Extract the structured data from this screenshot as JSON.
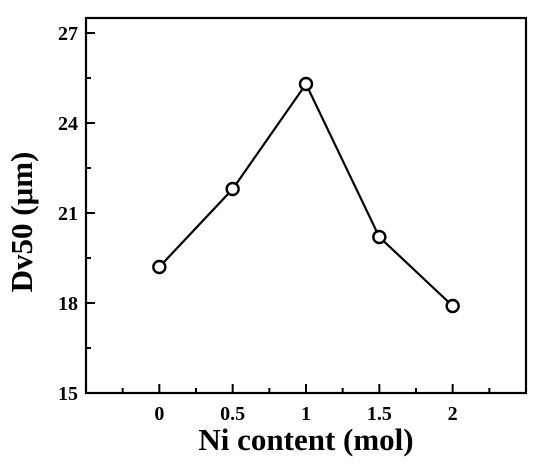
{
  "chart_data": {
    "type": "line",
    "title": "",
    "xlabel": "Ni content (mol)",
    "ylabel": "Dv50 (μm)",
    "x_ticks": [
      "0",
      "0.5",
      "1",
      "1.5",
      "2"
    ],
    "y_ticks": [
      "15",
      "18",
      "21",
      "24",
      "27"
    ],
    "xlim": [
      -0.5,
      2.5
    ],
    "ylim": [
      15,
      27.5
    ],
    "grid": false,
    "legend": "none",
    "series": [
      {
        "x": [
          0,
          0.5,
          1,
          1.5,
          2
        ],
        "values": [
          19.2,
          21.8,
          25.3,
          20.2,
          17.9
        ],
        "marker": "open-circle",
        "color": "#000000"
      }
    ]
  }
}
